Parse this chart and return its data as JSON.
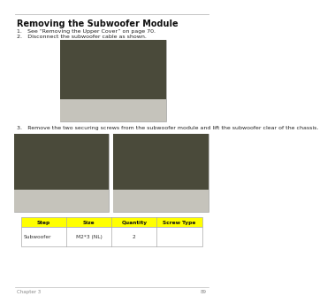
{
  "title": "Removing the Subwoofer Module",
  "step1": "1. See “Removing the Upper Cover” on page 70.",
  "step2": "2. Disconnect the subwoofer cable as shown.",
  "step3": "3. Remove the two securing screws from the subwoofer module and lift the subwoofer clear of the chassis.",
  "table_header": [
    "Step",
    "Size",
    "Quantity",
    "Screw Type"
  ],
  "table_row": [
    "Subwoofer",
    "M2*3 (NL)",
    "2",
    ""
  ],
  "table_header_bg": "#FFFF00",
  "table_border": "#AAAAAA",
  "bg_color": "#FFFFFF",
  "title_fontsize": 7.0,
  "body_fontsize": 4.5,
  "table_fontsize": 4.2,
  "footer_text": "89",
  "footer_chapter": "Chapter 3",
  "img1_bg": "#8B8B8B",
  "img2_bg": "#8B8B8B",
  "hr_color": "#BBBBBB"
}
